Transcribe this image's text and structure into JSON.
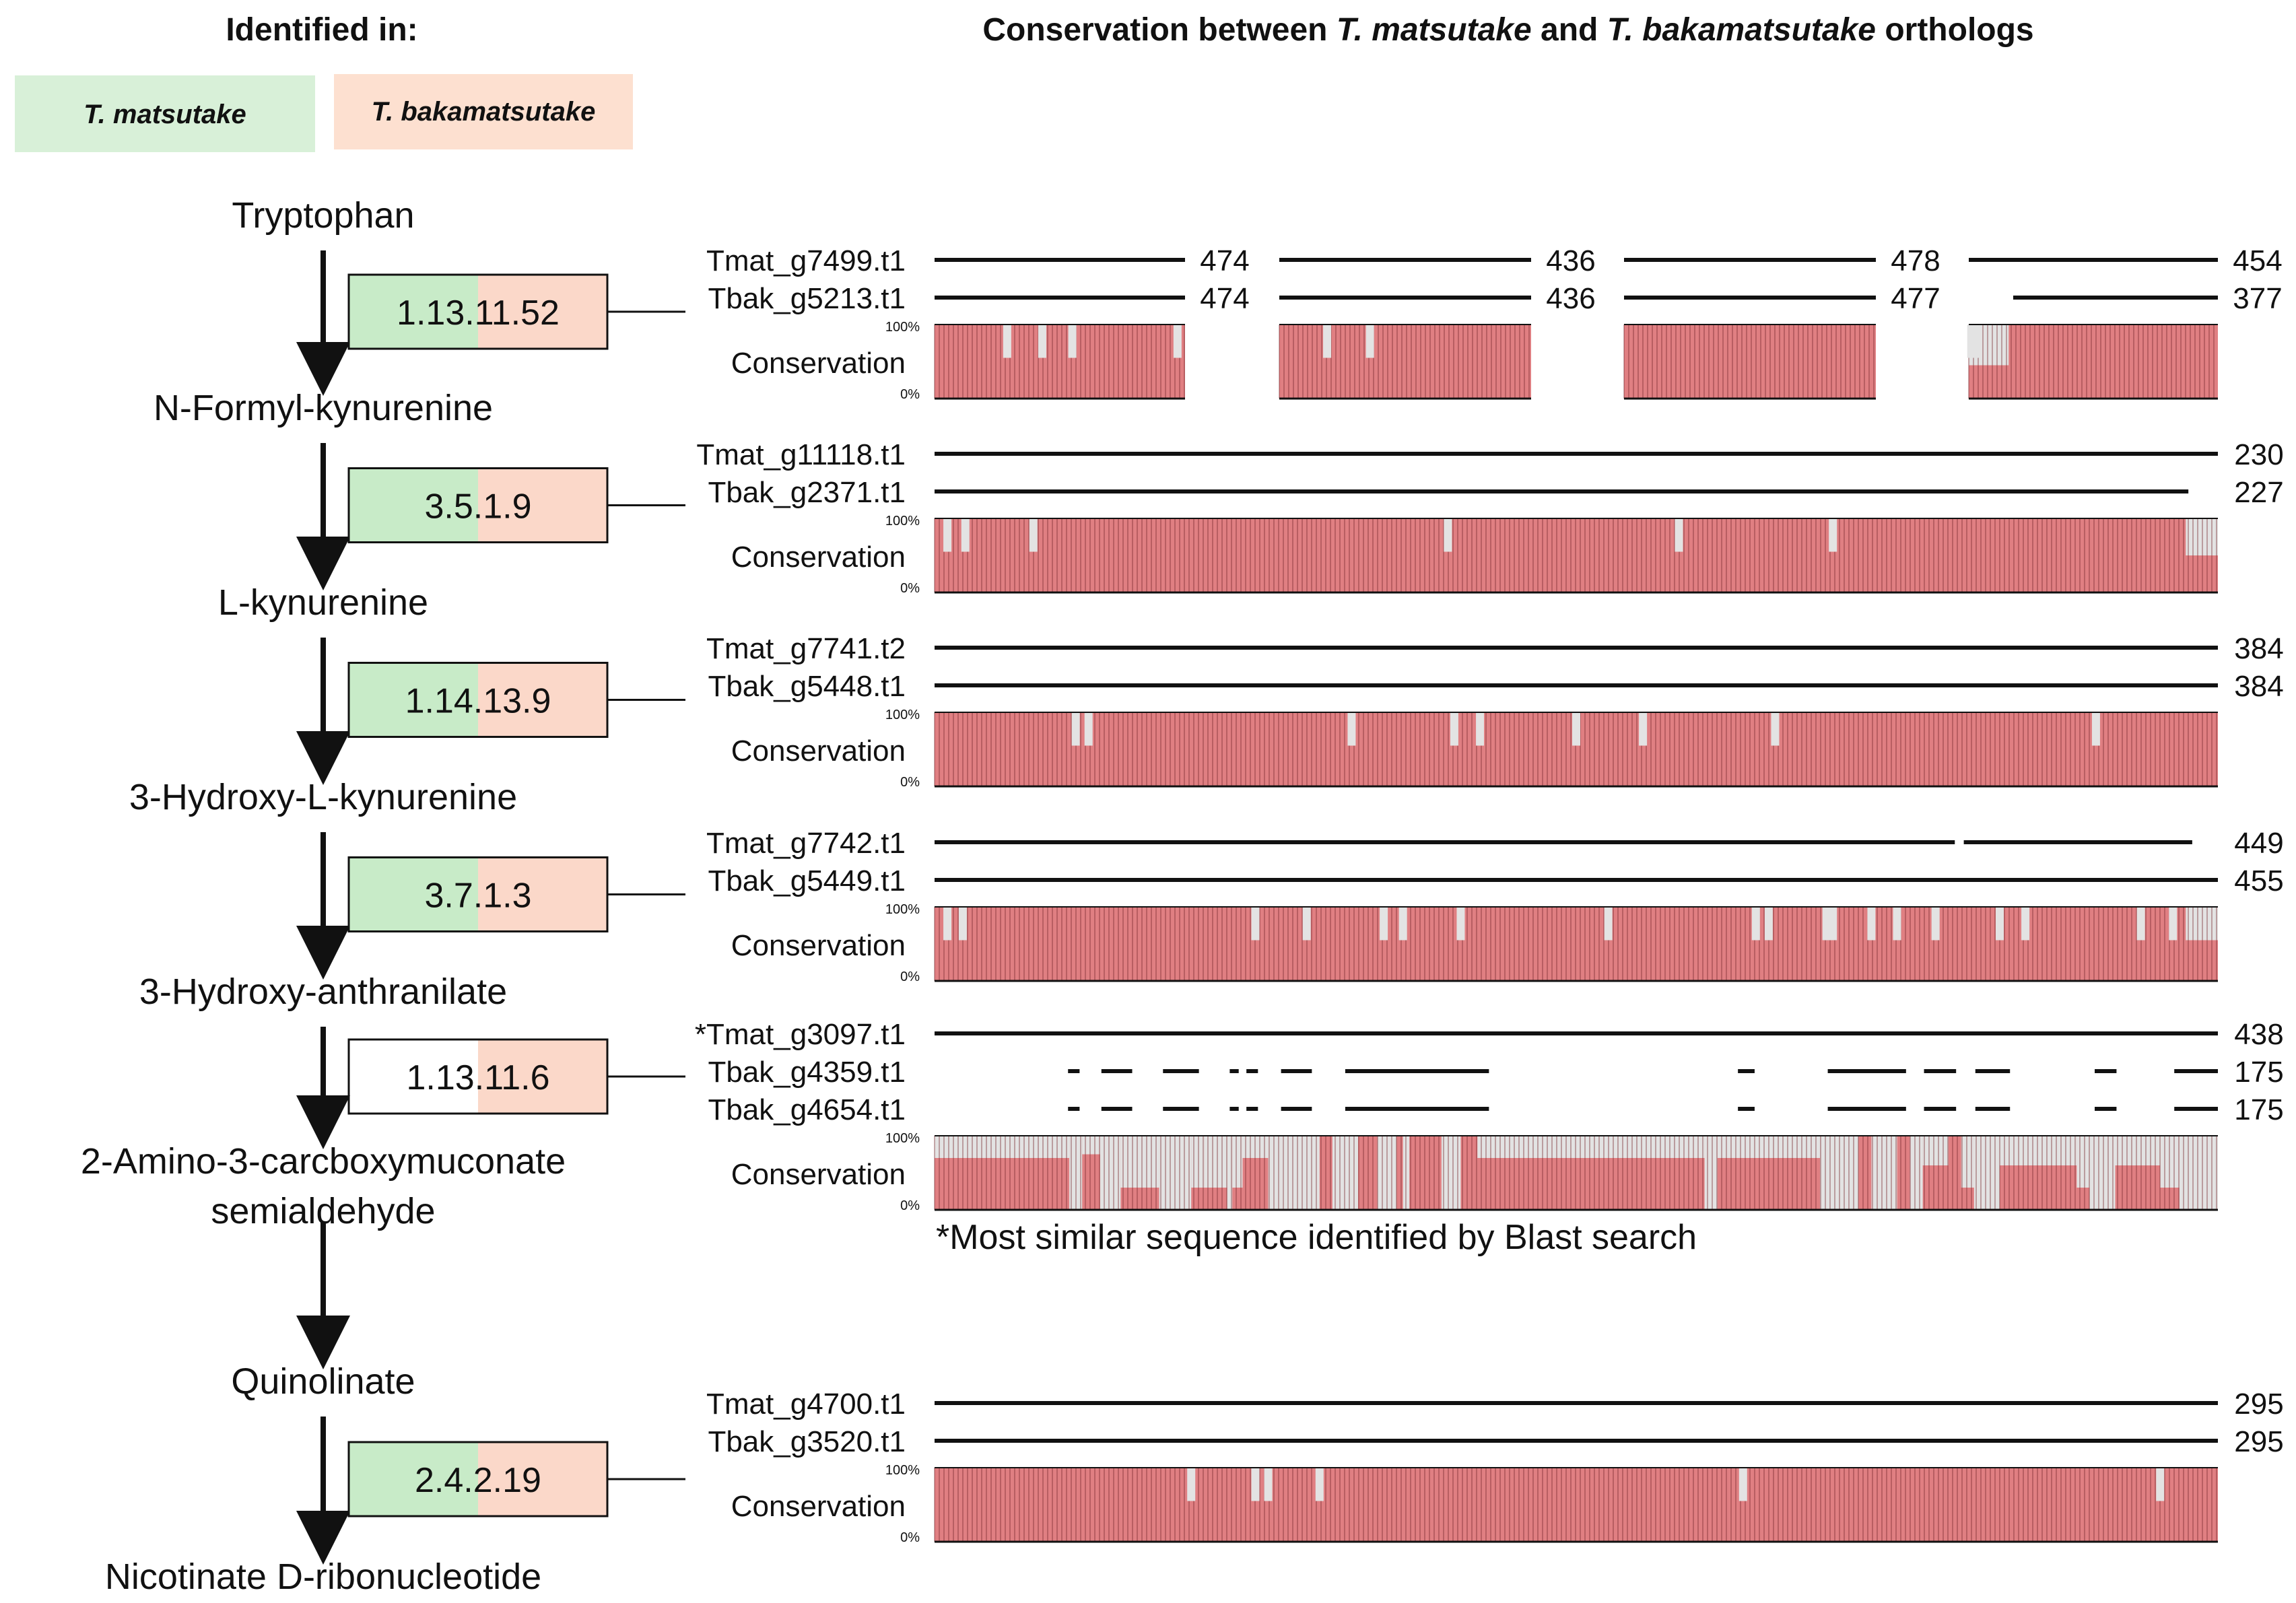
{
  "headers": {
    "identified_in": "Identified in:",
    "conservation_prefix": "Conservation between ",
    "species_a": "T. matsutake",
    "and": " and ",
    "species_b": "T. bakamatsutake",
    "conservation_suffix": " orthologs"
  },
  "legend": {
    "matsutake": {
      "label": "T. matsutake",
      "color": "#d8f0d8"
    },
    "bakamatsutake": {
      "label": "T. bakamatsutake",
      "color": "#fde0d0"
    }
  },
  "colors": {
    "green": "#c8ebc8",
    "peach": "#fbd8c9",
    "bar": "#e07f82",
    "bar_line": "#7a2b2f",
    "gap": "#e3e3e3",
    "ink": "#111111"
  },
  "pathway": {
    "compounds": [
      {
        "lines": [
          "Tryptophan"
        ]
      },
      {
        "lines": [
          "N-Formyl-kynurenine"
        ]
      },
      {
        "lines": [
          "L-kynurenine"
        ]
      },
      {
        "lines": [
          "3-Hydroxy-L-kynurenine"
        ]
      },
      {
        "lines": [
          "3-Hydroxy-anthranilate"
        ]
      },
      {
        "lines": [
          "2-Amino-3-carcboxymuconate",
          "semialdehyde"
        ]
      },
      {
        "lines": [
          "Quinolinate"
        ]
      },
      {
        "lines": [
          "Nicotinate D-ribonucleotide"
        ]
      }
    ],
    "enzymes": [
      {
        "ec": "1.13.11.52",
        "green": true,
        "peach": true
      },
      {
        "ec": "3.5.1.9",
        "green": true,
        "peach": true
      },
      {
        "ec": "1.14.13.9",
        "green": true,
        "peach": true
      },
      {
        "ec": "3.7.1.3",
        "green": true,
        "peach": true
      },
      {
        "ec": "1.13.11.6",
        "green": false,
        "peach": true
      },
      null,
      {
        "ec": "2.4.2.19",
        "green": true,
        "peach": true
      }
    ]
  },
  "conservation_label": "Conservation",
  "scale_top": "100%",
  "scale_bottom": "0%",
  "footnote": "*Most similar sequence identified by Blast search",
  "panels": [
    {
      "mode": "split",
      "rows": [
        {
          "name": "Tmat_g7499.t1",
          "lengths": [
            "474",
            "436",
            "478",
            "454"
          ]
        },
        {
          "name": "Tbak_g5213.t1",
          "lengths": [
            "474",
            "436",
            "477",
            "377"
          ]
        }
      ],
      "dips": [
        [
          0.29,
          0.43,
          0.55,
          0.97
        ],
        [
          0.19,
          0.36
        ],
        [],
        [
          0.01,
          0.03
        ]
      ],
      "gaps": [
        [],
        [],
        [],
        [
          [
            0.0,
            0.16,
            0.45
          ]
        ]
      ]
    },
    {
      "mode": "single",
      "rows": [
        {
          "name": "Tmat_g11118.t1",
          "length": "230",
          "segments": [
            [
              0.0,
              1.0
            ]
          ]
        },
        {
          "name": "Tbak_g2371.t1",
          "length": "227",
          "segments": [
            [
              0.0,
              0.977
            ]
          ]
        }
      ],
      "dips": [
        0.01,
        0.024,
        0.077,
        0.4,
        0.58,
        0.7
      ],
      "gaps": [
        [
          0.975,
          1.0,
          0.5
        ]
      ]
    },
    {
      "mode": "single",
      "rows": [
        {
          "name": "Tmat_g7741.t2",
          "length": "384",
          "segments": [
            [
              0.0,
              1.0
            ]
          ]
        },
        {
          "name": "Tbak_g5448.t1",
          "length": "384",
          "segments": [
            [
              0.0,
              1.0
            ]
          ]
        }
      ],
      "dips": [
        0.11,
        0.12,
        0.325,
        0.405,
        0.425,
        0.5,
        0.552,
        0.655,
        0.905
      ],
      "gaps": []
    },
    {
      "mode": "single",
      "rows": [
        {
          "name": "Tmat_g7742.t1",
          "length": "449",
          "segments": [
            [
              0.0,
              0.795
            ],
            [
              0.802,
              0.98
            ]
          ]
        },
        {
          "name": "Tbak_g5449.t1",
          "length": "455",
          "segments": [
            [
              0.0,
              1.0
            ]
          ]
        }
      ],
      "dips": [
        0.01,
        0.022,
        0.25,
        0.29,
        0.35,
        0.365,
        0.41,
        0.525,
        0.64,
        0.65,
        0.695,
        0.7,
        0.73,
        0.75,
        0.78,
        0.83,
        0.85,
        0.94,
        0.965
      ],
      "gaps": [
        [
          0.975,
          1.0,
          0.55
        ]
      ]
    },
    {
      "mode": "single",
      "rows": [
        {
          "name": "*Tmat_g3097.t1",
          "length": "438",
          "segments": [
            [
              0.0,
              1.0
            ]
          ]
        },
        {
          "name": "Tbak_g4359.t1",
          "length": "175",
          "segments": [
            [
              0.104,
              0.113
            ],
            [
              0.13,
              0.154
            ],
            [
              0.178,
              0.206
            ],
            [
              0.23,
              0.237
            ],
            [
              0.243,
              0.252
            ],
            [
              0.27,
              0.294
            ],
            [
              0.32,
              0.432
            ],
            [
              0.626,
              0.639
            ],
            [
              0.696,
              0.757
            ],
            [
              0.771,
              0.796
            ],
            [
              0.811,
              0.838
            ],
            [
              0.904,
              0.921
            ],
            [
              0.966,
              1.0
            ]
          ]
        },
        {
          "name": "Tbak_g4654.t1",
          "length": "175",
          "segments": [
            [
              0.104,
              0.113
            ],
            [
              0.13,
              0.154
            ],
            [
              0.178,
              0.206
            ],
            [
              0.23,
              0.237
            ],
            [
              0.243,
              0.252
            ],
            [
              0.27,
              0.294
            ],
            [
              0.32,
              0.432
            ],
            [
              0.626,
              0.639
            ],
            [
              0.696,
              0.757
            ],
            [
              0.771,
              0.796
            ],
            [
              0.811,
              0.838
            ],
            [
              0.904,
              0.921
            ],
            [
              0.966,
              1.0
            ]
          ]
        }
      ],
      "dips": [],
      "gaps": [
        [
          0.0,
          0.105,
          0.7
        ],
        [
          0.105,
          0.115,
          0.0
        ],
        [
          0.115,
          0.129,
          0.75
        ],
        [
          0.129,
          0.145,
          0.0
        ],
        [
          0.145,
          0.175,
          0.3
        ],
        [
          0.175,
          0.2,
          0.0
        ],
        [
          0.2,
          0.21,
          0.3
        ],
        [
          0.21,
          0.228,
          0.3
        ],
        [
          0.228,
          0.232,
          0.0
        ],
        [
          0.232,
          0.24,
          0.3
        ],
        [
          0.24,
          0.26,
          0.7
        ],
        [
          0.26,
          0.27,
          0.0
        ],
        [
          0.27,
          0.3,
          0.0
        ],
        [
          0.31,
          0.33,
          0.0
        ],
        [
          0.345,
          0.36,
          0.0
        ],
        [
          0.365,
          0.37,
          0.0
        ],
        [
          0.395,
          0.41,
          0.0
        ],
        [
          0.423,
          0.6,
          0.7
        ],
        [
          0.6,
          0.61,
          0.0
        ],
        [
          0.61,
          0.69,
          0.7
        ],
        [
          0.69,
          0.72,
          0.0
        ],
        [
          0.73,
          0.75,
          0.0
        ],
        [
          0.76,
          0.77,
          0.0
        ],
        [
          0.77,
          0.79,
          0.6
        ],
        [
          0.8,
          0.81,
          0.3
        ],
        [
          0.81,
          0.83,
          0.0
        ],
        [
          0.83,
          0.89,
          0.6
        ],
        [
          0.89,
          0.9,
          0.3
        ],
        [
          0.9,
          0.92,
          0.0
        ],
        [
          0.92,
          0.955,
          0.6
        ],
        [
          0.955,
          0.97,
          0.3
        ],
        [
          0.97,
          1.0,
          0.0
        ]
      ]
    },
    null,
    {
      "mode": "single",
      "rows": [
        {
          "name": "Tmat_g4700.t1",
          "length": "295",
          "segments": [
            [
              0.0,
              1.0
            ]
          ]
        },
        {
          "name": "Tbak_g3520.t1",
          "length": "295",
          "segments": [
            [
              0.0,
              1.0
            ]
          ]
        }
      ],
      "dips": [
        0.2,
        0.25,
        0.26,
        0.3,
        0.63,
        0.955
      ],
      "gaps": []
    }
  ]
}
